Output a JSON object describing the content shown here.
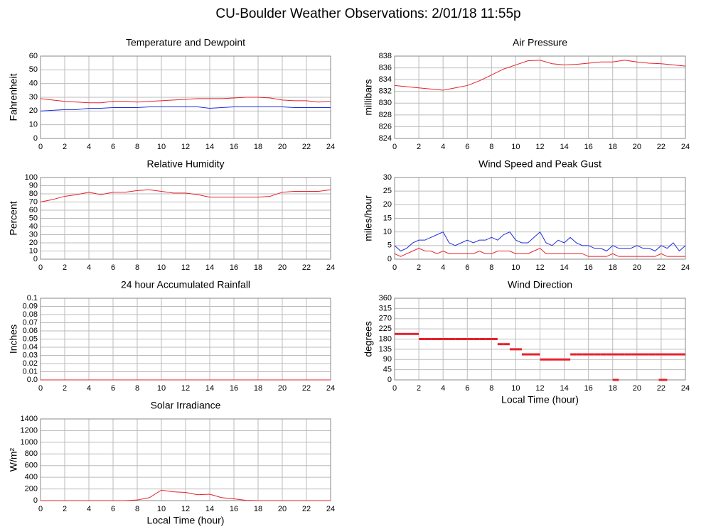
{
  "title": "CU-Boulder Weather Observations: 2/01/18 11:55p",
  "chart_data": [
    {
      "type": "line",
      "title": "Temperature and Dewpoint",
      "y_label": "Fahrenheit",
      "x": [
        0,
        1,
        2,
        3,
        4,
        5,
        6,
        7,
        8,
        9,
        10,
        11,
        12,
        13,
        14,
        15,
        16,
        17,
        18,
        19,
        20,
        21,
        22,
        23,
        24
      ],
      "series": [
        {
          "color": "#e8202a",
          "values": [
            29,
            28,
            27,
            26.5,
            26,
            26,
            27,
            27,
            26.5,
            27,
            27.5,
            28,
            28.5,
            29,
            29,
            29,
            29.5,
            30,
            30,
            29.5,
            28,
            27.5,
            27.5,
            26.5,
            27
          ]
        },
        {
          "color": "#1f2de0",
          "values": [
            20,
            20.5,
            21,
            21,
            22,
            22,
            22.5,
            22.5,
            22.5,
            23,
            23,
            23,
            23,
            23,
            22,
            22.5,
            23,
            23,
            23,
            23,
            23,
            22.5,
            22.5,
            22.5,
            22.5
          ]
        }
      ],
      "xlim": [
        0,
        24
      ],
      "xticks": [
        0,
        2,
        4,
        6,
        8,
        10,
        12,
        14,
        16,
        18,
        20,
        22,
        24
      ],
      "ylim": [
        0,
        60
      ],
      "yticks": [
        0,
        10,
        20,
        30,
        40,
        50,
        60
      ],
      "grid": true
    },
    {
      "type": "line",
      "title": "Air Pressure",
      "y_label": "millibars",
      "x": [
        0,
        1,
        2,
        3,
        4,
        5,
        6,
        7,
        8,
        9,
        10,
        11,
        12,
        13,
        14,
        15,
        16,
        17,
        18,
        19,
        20,
        21,
        22,
        23,
        24
      ],
      "series": [
        {
          "color": "#e8202a",
          "values": [
            833,
            832.8,
            832.6,
            832.4,
            832.2,
            832.6,
            833,
            833.8,
            834.8,
            835.8,
            836.5,
            837.2,
            837.3,
            836.7,
            836.5,
            836.6,
            836.8,
            837,
            837,
            837.3,
            837,
            836.8,
            836.7,
            836.5,
            836.3
          ]
        }
      ],
      "xlim": [
        0,
        24
      ],
      "xticks": [
        0,
        2,
        4,
        6,
        8,
        10,
        12,
        14,
        16,
        18,
        20,
        22,
        24
      ],
      "ylim": [
        824,
        838
      ],
      "yticks": [
        824,
        826,
        828,
        830,
        832,
        834,
        836,
        838
      ],
      "grid": true
    },
    {
      "type": "line",
      "title": "Relative Humidity",
      "y_label": "Percent",
      "x": [
        0,
        1,
        2,
        3,
        4,
        5,
        6,
        7,
        8,
        9,
        10,
        11,
        12,
        13,
        14,
        15,
        16,
        17,
        18,
        19,
        20,
        21,
        22,
        23,
        24
      ],
      "series": [
        {
          "color": "#e8202a",
          "values": [
            70,
            73,
            77,
            79,
            82,
            79,
            82,
            82,
            84,
            85,
            83,
            81,
            81,
            79,
            76,
            76,
            76,
            76,
            76,
            77,
            82,
            83,
            83,
            83,
            85
          ]
        }
      ],
      "xlim": [
        0,
        24
      ],
      "xticks": [
        0,
        2,
        4,
        6,
        8,
        10,
        12,
        14,
        16,
        18,
        20,
        22,
        24
      ],
      "ylim": [
        0,
        100
      ],
      "yticks": [
        0,
        10,
        20,
        30,
        40,
        50,
        60,
        70,
        80,
        90,
        100
      ],
      "grid": true
    },
    {
      "type": "line",
      "title": "Wind Speed and Peak Gust",
      "y_label": "miles/hour",
      "x": [
        0,
        0.5,
        1,
        1.5,
        2,
        2.5,
        3,
        3.5,
        4,
        4.5,
        5,
        5.5,
        6,
        6.5,
        7,
        7.5,
        8,
        8.5,
        9,
        9.5,
        10,
        10.5,
        11,
        11.5,
        12,
        12.5,
        13,
        13.5,
        14,
        14.5,
        15,
        15.5,
        16,
        16.5,
        17,
        17.5,
        18,
        18.5,
        19,
        19.5,
        20,
        20.5,
        21,
        21.5,
        22,
        22.5,
        23,
        23.5,
        24
      ],
      "series": [
        {
          "color": "#1f2de0",
          "values": [
            5,
            3,
            4,
            6,
            7,
            7,
            8,
            9,
            10,
            6,
            5,
            6,
            7,
            6,
            7,
            7,
            8,
            7,
            9,
            10,
            7,
            6,
            6,
            8,
            10,
            6,
            5,
            7,
            6,
            8,
            6,
            5,
            5,
            4,
            4,
            3,
            5,
            4,
            4,
            4,
            5,
            4,
            4,
            3,
            5,
            4,
            6,
            3,
            5
          ]
        },
        {
          "color": "#e8202a",
          "values": [
            2,
            1,
            2,
            3,
            4,
            3,
            3,
            2,
            3,
            2,
            2,
            2,
            2,
            2,
            3,
            2,
            2,
            3,
            3,
            3,
            2,
            2,
            2,
            3,
            4,
            2,
            2,
            2,
            2,
            2,
            2,
            2,
            1,
            1,
            1,
            1,
            2,
            1,
            1,
            1,
            1,
            1,
            1,
            1,
            2,
            1,
            1,
            1,
            1
          ]
        }
      ],
      "xlim": [
        0,
        24
      ],
      "xticks": [
        0,
        2,
        4,
        6,
        8,
        10,
        12,
        14,
        16,
        18,
        20,
        22,
        24
      ],
      "ylim": [
        0,
        30
      ],
      "yticks": [
        0,
        5,
        10,
        15,
        20,
        25,
        30
      ],
      "grid": true
    },
    {
      "type": "line",
      "title": "24 hour Accumulated Rainfall",
      "y_label": "Inches",
      "x": [
        0,
        1,
        2,
        3,
        4,
        5,
        6,
        7,
        8,
        9,
        10,
        11,
        12,
        13,
        14,
        15,
        16,
        17,
        18,
        19,
        20,
        21,
        22,
        23,
        24
      ],
      "series": [
        {
          "color": "#e8202a",
          "values": [
            0,
            0,
            0,
            0,
            0,
            0,
            0,
            0,
            0,
            0,
            0,
            0,
            0,
            0,
            0,
            0,
            0,
            0,
            0,
            0,
            0,
            0,
            0,
            0,
            0
          ]
        }
      ],
      "xlim": [
        0,
        24
      ],
      "xticks": [
        0,
        2,
        4,
        6,
        8,
        10,
        12,
        14,
        16,
        18,
        20,
        22,
        24
      ],
      "ylim": [
        0,
        0.1
      ],
      "yticks": [
        {
          "value": 0,
          "label": "0.0"
        },
        0.01,
        0.02,
        0.03,
        0.04,
        0.05,
        0.06,
        0.07,
        0.08,
        0.09,
        0.1
      ],
      "grid": true
    },
    {
      "type": "scatter",
      "title": "Wind Direction",
      "y_label": "degrees",
      "x_label": "Local Time (hour)",
      "x": [
        0,
        0.5,
        1,
        1.5,
        2,
        2.5,
        3,
        3.5,
        4,
        4.5,
        5,
        5.5,
        6,
        6.5,
        7,
        7.5,
        8,
        8.5,
        9,
        9.5,
        10,
        10.5,
        11,
        11.5,
        12,
        12.5,
        13,
        13.5,
        14,
        14.5,
        15,
        15.5,
        16,
        16.5,
        17,
        17.5,
        18,
        18,
        18.5,
        19,
        19.5,
        20,
        20.5,
        21,
        21.5,
        22,
        21.8,
        22,
        22.5,
        23,
        23.5
      ],
      "series": [
        {
          "color": "#e8202a",
          "values": [
            202.5,
            202.5,
            202.5,
            202.5,
            180,
            180,
            180,
            180,
            180,
            180,
            180,
            180,
            180,
            180,
            180,
            180,
            180,
            157.5,
            157.5,
            135,
            135,
            112.5,
            112.5,
            112.5,
            90,
            90,
            90,
            90,
            90,
            112.5,
            112.5,
            112.5,
            112.5,
            112.5,
            112.5,
            112.5,
            112.5,
            0,
            112.5,
            112.5,
            112.5,
            112.5,
            112.5,
            112.5,
            112.5,
            112.5,
            0,
            0,
            112.5,
            112.5,
            112.5
          ]
        }
      ],
      "xlim": [
        0,
        24
      ],
      "xticks": [
        0,
        2,
        4,
        6,
        8,
        10,
        12,
        14,
        16,
        18,
        20,
        22,
        24
      ],
      "ylim": [
        0,
        360
      ],
      "yticks": [
        0,
        45,
        90,
        135,
        180,
        225,
        270,
        315,
        360
      ],
      "grid": true
    },
    {
      "type": "line",
      "title": "Solar Irradiance",
      "y_label": "W/m²",
      "x_label": "Local Time (hour)",
      "x": [
        0,
        1,
        2,
        3,
        4,
        5,
        6,
        7,
        8,
        9,
        10,
        11,
        12,
        13,
        14,
        15,
        16,
        17,
        18,
        19,
        20,
        21,
        22,
        23,
        24
      ],
      "series": [
        {
          "color": "#e8202a",
          "values": [
            0,
            0,
            0,
            0,
            0,
            0,
            0,
            0,
            10,
            50,
            180,
            150,
            140,
            100,
            110,
            50,
            30,
            5,
            0,
            0,
            0,
            0,
            0,
            0,
            0
          ]
        }
      ],
      "xlim": [
        0,
        24
      ],
      "xticks": [
        0,
        2,
        4,
        6,
        8,
        10,
        12,
        14,
        16,
        18,
        20,
        22,
        24
      ],
      "ylim": [
        0,
        1400
      ],
      "yticks": [
        0,
        200,
        400,
        600,
        800,
        1000,
        1200,
        1400
      ],
      "grid": true
    }
  ]
}
